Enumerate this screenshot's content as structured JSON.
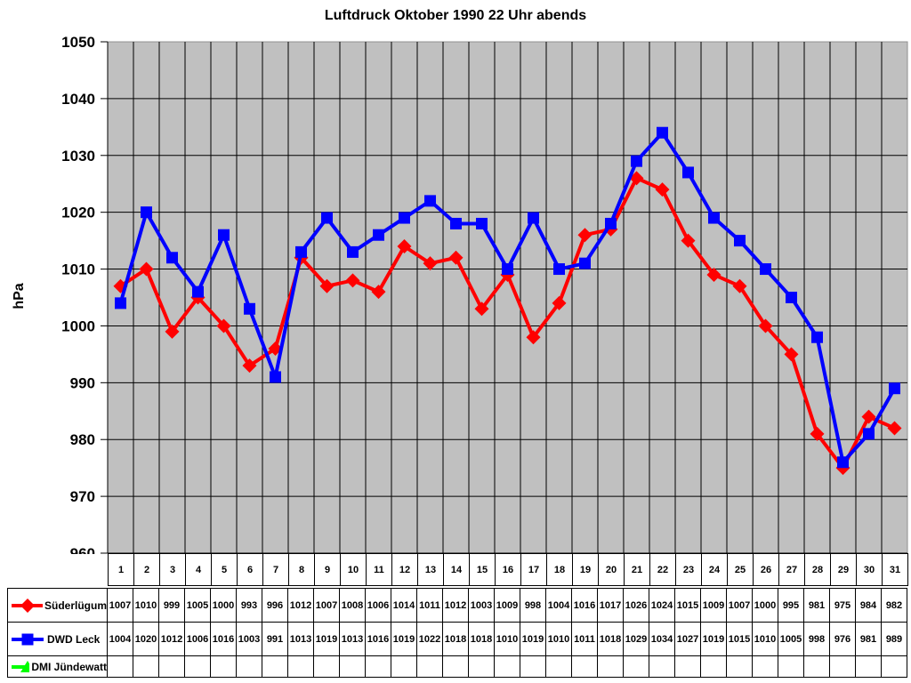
{
  "chart_data": {
    "type": "line",
    "title": "Luftdruck Oktober 1990 22 Uhr abends",
    "xlabel": "",
    "ylabel": "hPa",
    "ylim": [
      960,
      1050
    ],
    "ytick_step": 10,
    "grid": true,
    "plot_bg": "#c0c0c0",
    "plot_frame_color": "#909090",
    "grid_color": "#000000",
    "legend_position": "table-left",
    "categories": [
      "1",
      "2",
      "3",
      "4",
      "5",
      "6",
      "7",
      "8",
      "9",
      "10",
      "11",
      "12",
      "13",
      "14",
      "15",
      "16",
      "17",
      "18",
      "19",
      "20",
      "21",
      "22",
      "23",
      "24",
      "25",
      "26",
      "27",
      "28",
      "29",
      "30",
      "31"
    ],
    "series": [
      {
        "name": "Süderlügum",
        "color": "#ff0000",
        "marker": "diamond",
        "values": [
          1007,
          1010,
          999,
          1005,
          1000,
          993,
          996,
          1012,
          1007,
          1008,
          1006,
          1014,
          1011,
          1012,
          1003,
          1009,
          998,
          1004,
          1016,
          1017,
          1026,
          1024,
          1015,
          1009,
          1007,
          1000,
          995,
          981,
          975,
          984,
          982
        ]
      },
      {
        "name": "DWD Leck",
        "color": "#0000ff",
        "marker": "square",
        "values": [
          1004,
          1020,
          1012,
          1006,
          1016,
          1003,
          991,
          1013,
          1019,
          1013,
          1016,
          1019,
          1022,
          1018,
          1018,
          1010,
          1019,
          1010,
          1011,
          1018,
          1029,
          1034,
          1027,
          1019,
          1015,
          1010,
          1005,
          998,
          976,
          981,
          989
        ]
      },
      {
        "name": "DMI Jündewatt",
        "color": "#00ff00",
        "marker": "triangle",
        "values": []
      }
    ]
  }
}
